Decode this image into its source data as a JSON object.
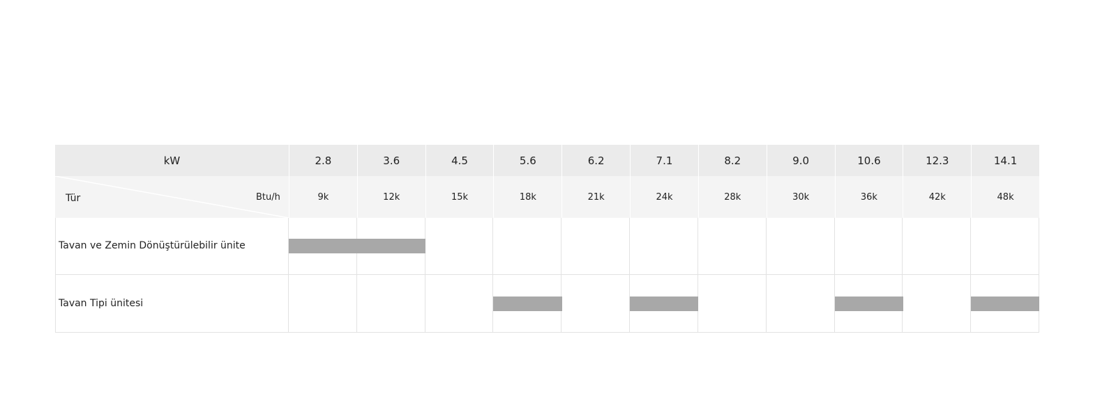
{
  "table": {
    "header": {
      "kw_label": "kW",
      "type_label": "Tür",
      "btu_label": "Btu/h"
    },
    "kw": [
      "2.8",
      "3.6",
      "4.5",
      "5.6",
      "6.2",
      "7.1",
      "8.2",
      "9.0",
      "10.6",
      "12.3",
      "14.1"
    ],
    "btu": [
      "9k",
      "12k",
      "15k",
      "18k",
      "21k",
      "24k",
      "28k",
      "30k",
      "36k",
      "42k",
      "48k"
    ],
    "rows": [
      {
        "label": "Tavan ve Zemin Dönüştürülebilir ünite",
        "available": [
          true,
          true,
          false,
          false,
          false,
          false,
          false,
          false,
          false,
          false,
          false
        ]
      },
      {
        "label": "Tavan Tipi ünitesi",
        "available": [
          false,
          false,
          false,
          true,
          false,
          true,
          false,
          false,
          true,
          false,
          true
        ]
      }
    ],
    "bar_color": "#a8a8a8"
  }
}
